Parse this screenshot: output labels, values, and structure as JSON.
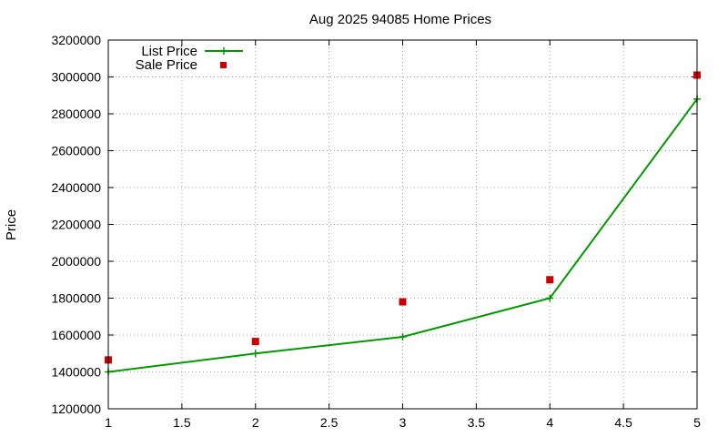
{
  "chart_data": {
    "type": "line",
    "title": "Aug 2025 94085 Home Prices",
    "xlabel": "",
    "ylabel": "Price",
    "xlim": [
      1,
      5
    ],
    "ylim": [
      1200000,
      3200000
    ],
    "x_ticks": [
      "1",
      "1.5",
      "2",
      "2.5",
      "3",
      "3.5",
      "4",
      "4.5",
      "5"
    ],
    "y_ticks": [
      "1200000",
      "1400000",
      "1600000",
      "1800000",
      "2000000",
      "2200000",
      "2400000",
      "2600000",
      "2800000",
      "3000000",
      "3200000"
    ],
    "grid": true,
    "legend_position": "top-left",
    "series": [
      {
        "name": "List Price",
        "style": "line-with-plus-markers",
        "color": "#009900",
        "x": [
          1,
          2,
          3,
          4,
          5
        ],
        "y": [
          1400000,
          1500000,
          1590000,
          1800000,
          2880000
        ]
      },
      {
        "name": "Sale Price",
        "style": "square-markers",
        "color": "#cc0000",
        "x": [
          1,
          2,
          3,
          4,
          5
        ],
        "y": [
          1465000,
          1565000,
          1780000,
          1900000,
          3010000
        ]
      }
    ]
  }
}
